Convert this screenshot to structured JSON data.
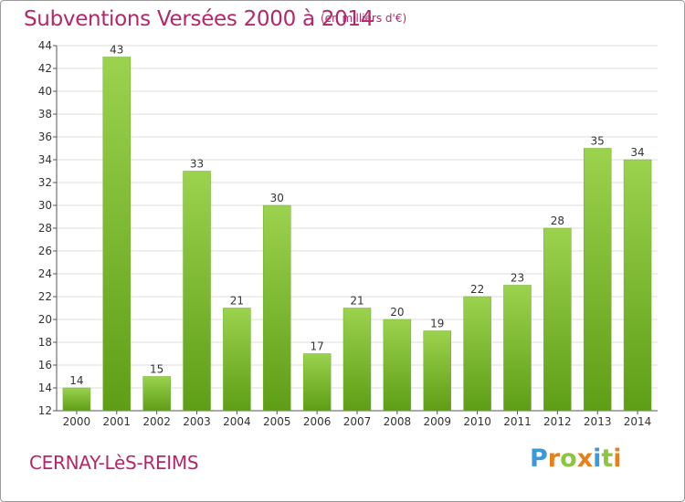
{
  "header": {
    "title": "Subventions Versées 2000 à 2014",
    "subtitle": "(en milliers d'€)"
  },
  "footer": {
    "commune": "CERNAY-LèS-REIMS",
    "logo": "Proxiti",
    "logo_colors": [
      "#3a9ad9",
      "#e8801a",
      "#8cc63f",
      "#e8801a",
      "#3a9ad9",
      "#8cc63f",
      "#e8801a"
    ]
  },
  "chart_data": {
    "type": "bar",
    "categories": [
      "2000",
      "2001",
      "2002",
      "2003",
      "2004",
      "2005",
      "2006",
      "2007",
      "2008",
      "2009",
      "2010",
      "2011",
      "2012",
      "2013",
      "2014"
    ],
    "values": [
      14,
      43,
      15,
      33,
      21,
      30,
      17,
      21,
      20,
      19,
      22,
      23,
      28,
      35,
      34
    ],
    "ylim": [
      12,
      44
    ],
    "yticks": [
      12,
      14,
      16,
      18,
      20,
      22,
      24,
      26,
      28,
      30,
      32,
      34,
      36,
      38,
      40,
      42,
      44
    ],
    "grid": true,
    "colors": {
      "bar_top": "#9bd24e",
      "bar_bottom": "#5e9e16",
      "grid": "#dddddd",
      "axis": "#555555"
    }
  }
}
